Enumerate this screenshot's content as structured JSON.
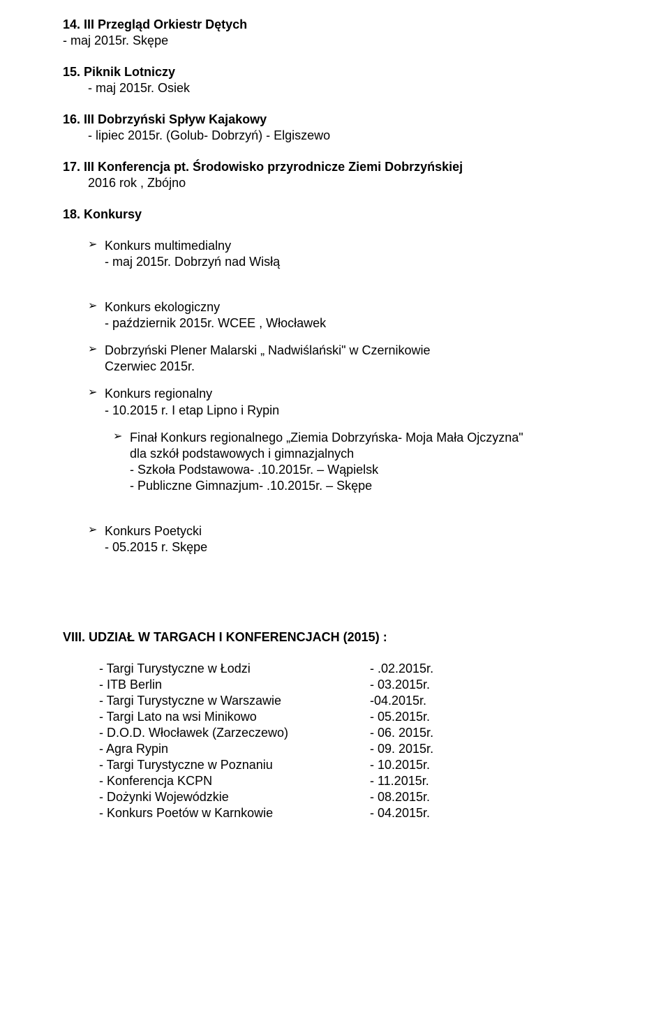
{
  "items": [
    {
      "num": "14.",
      "title": "III Przegląd Orkiestr Dętych",
      "lines": [
        "- maj 2015r.    Skępe"
      ]
    },
    {
      "num": "15.",
      "title": "Piknik Lotniczy",
      "lines_indented": [
        "- maj 2015r.   Osiek"
      ]
    },
    {
      "num": "16.",
      "title": "III Dobrzyński Spływ Kajakowy",
      "lines_indented": [
        "- lipiec 2015r.    (Golub- Dobrzyń)   - Elgiszewo"
      ]
    },
    {
      "num": "17.",
      "title": "III Konferencja pt. Środowisko przyrodnicze Ziemi Dobrzyńskiej",
      "lines_indented": [
        "2016 rok , Zbójno"
      ]
    },
    {
      "num": "18.",
      "title": "Konkursy"
    }
  ],
  "bullets_lvl1_a": [
    {
      "lead": "Konkurs multimedialny",
      "lines": [
        "- maj  2015r.    Dobrzyń nad Wisłą"
      ]
    }
  ],
  "bullets_lvl1_b": [
    {
      "lead": "Konkurs ekologiczny",
      "lines": [
        "- październik  2015r.    WCEE  , Włocławek"
      ]
    },
    {
      "lead": "Dobrzyński Plener Malarski „ Nadwiślański\" w Czernikowie",
      "lines": [
        "Czerwiec 2015r."
      ]
    },
    {
      "lead": "Konkurs regionalny",
      "lines": [
        "- 10.2015 r.   I etap Lipno i Rypin"
      ]
    }
  ],
  "bullets_lvl2": [
    {
      "lead": "Finał Konkurs regionalnego „Ziemia Dobrzyńska- Moja Mała Ojczyzna\"",
      "lines": [
        "dla szkół   podstawowych i  gimnazjalnych",
        "- Szkoła Podstawowa- .10.2015r. – Wąpielsk",
        "- Publiczne Gimnazjum- .10.2015r. –  Skępe"
      ]
    }
  ],
  "bullets_lvl1_c": [
    {
      "lead": "Konkurs Poetycki",
      "lines": [
        "- 05.2015 r.    Skępe"
      ]
    }
  ],
  "section8_heading": "VIII. UDZIAŁ W TARGACH I KONFERENCJACH (2015) :",
  "targi": [
    {
      "name": "- Targi Turystyczne  w Łodzi",
      "date": "- .02.2015r."
    },
    {
      "name": "-  ITB Berlin",
      "date": "- 03.2015r."
    },
    {
      "name": "- Targi Turystyczne w Warszawie",
      "date": " -04.2015r."
    },
    {
      "name": "- Targi Lato na wsi Minikowo",
      "date": "- 05.2015r."
    },
    {
      "name": "-  D.O.D. Włocławek (Zarzeczewo)",
      "date": "- 06. 2015r."
    },
    {
      "name": "-  Agra Rypin",
      "date": "- 09. 2015r."
    },
    {
      "name": "- Targi Turystyczne  w  Poznaniu",
      "date": "- 10.2015r."
    },
    {
      "name": "-  Konferencja KCPN",
      "date": "- 11.2015r."
    },
    {
      "name": "-  Dożynki Wojewódzkie",
      "date": "-  08.2015r."
    },
    {
      "name": "-  Konkurs Poetów  w Karnkowie",
      "date": "-  04.2015r."
    }
  ],
  "colors": {
    "text": "#000000",
    "background": "#ffffff"
  },
  "typography": {
    "base_font_size_pt": 14,
    "heading_weight": "bold"
  }
}
